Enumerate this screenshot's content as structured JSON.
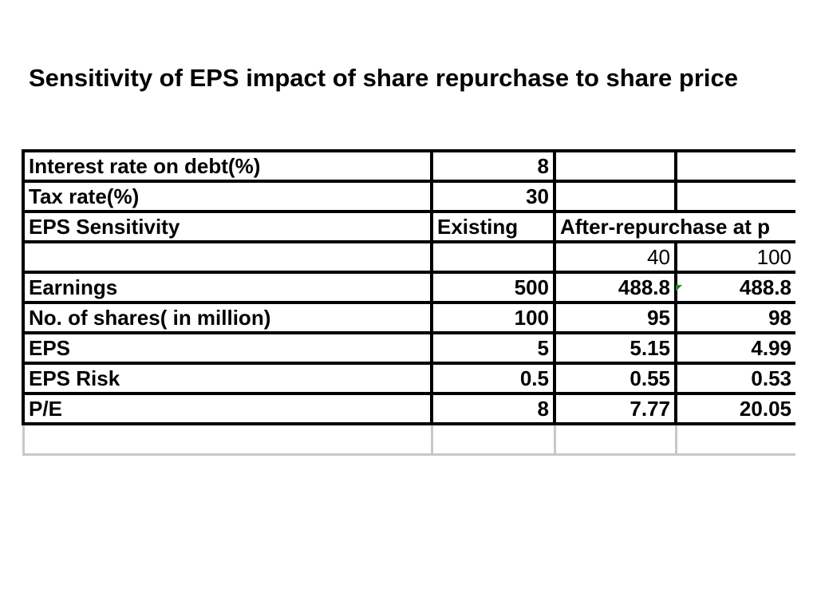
{
  "title": "Sensitivity of EPS impact of share repurchase to share price",
  "table": {
    "rows": [
      {
        "label": "Interest rate on debt(%)",
        "existing": "8",
        "c3": "",
        "c4": ""
      },
      {
        "label": "Tax rate(%)",
        "existing": "30",
        "c3": "",
        "c4": ""
      },
      {
        "label": "EPS Sensitivity",
        "existing": "Existing",
        "c3": "After-repurchase at p",
        "c4": ""
      },
      {
        "label": "",
        "existing": "",
        "c3": "40",
        "c4": "100"
      },
      {
        "label": "Earnings",
        "existing": "500",
        "c3": "488.8",
        "c4": "488.8"
      },
      {
        "label": "No. of shares( in million)",
        "existing": "100",
        "c3": "95",
        "c4": "98"
      },
      {
        "label": "EPS",
        "existing": "5",
        "c3": "5.15",
        "c4": "4.99"
      },
      {
        "label": "EPS Risk",
        "existing": "0.5",
        "c3": "0.55",
        "c4": "0.53"
      },
      {
        "label": "P/E",
        "existing": "8",
        "c3": "7.77",
        "c4": "20.05"
      }
    ]
  }
}
